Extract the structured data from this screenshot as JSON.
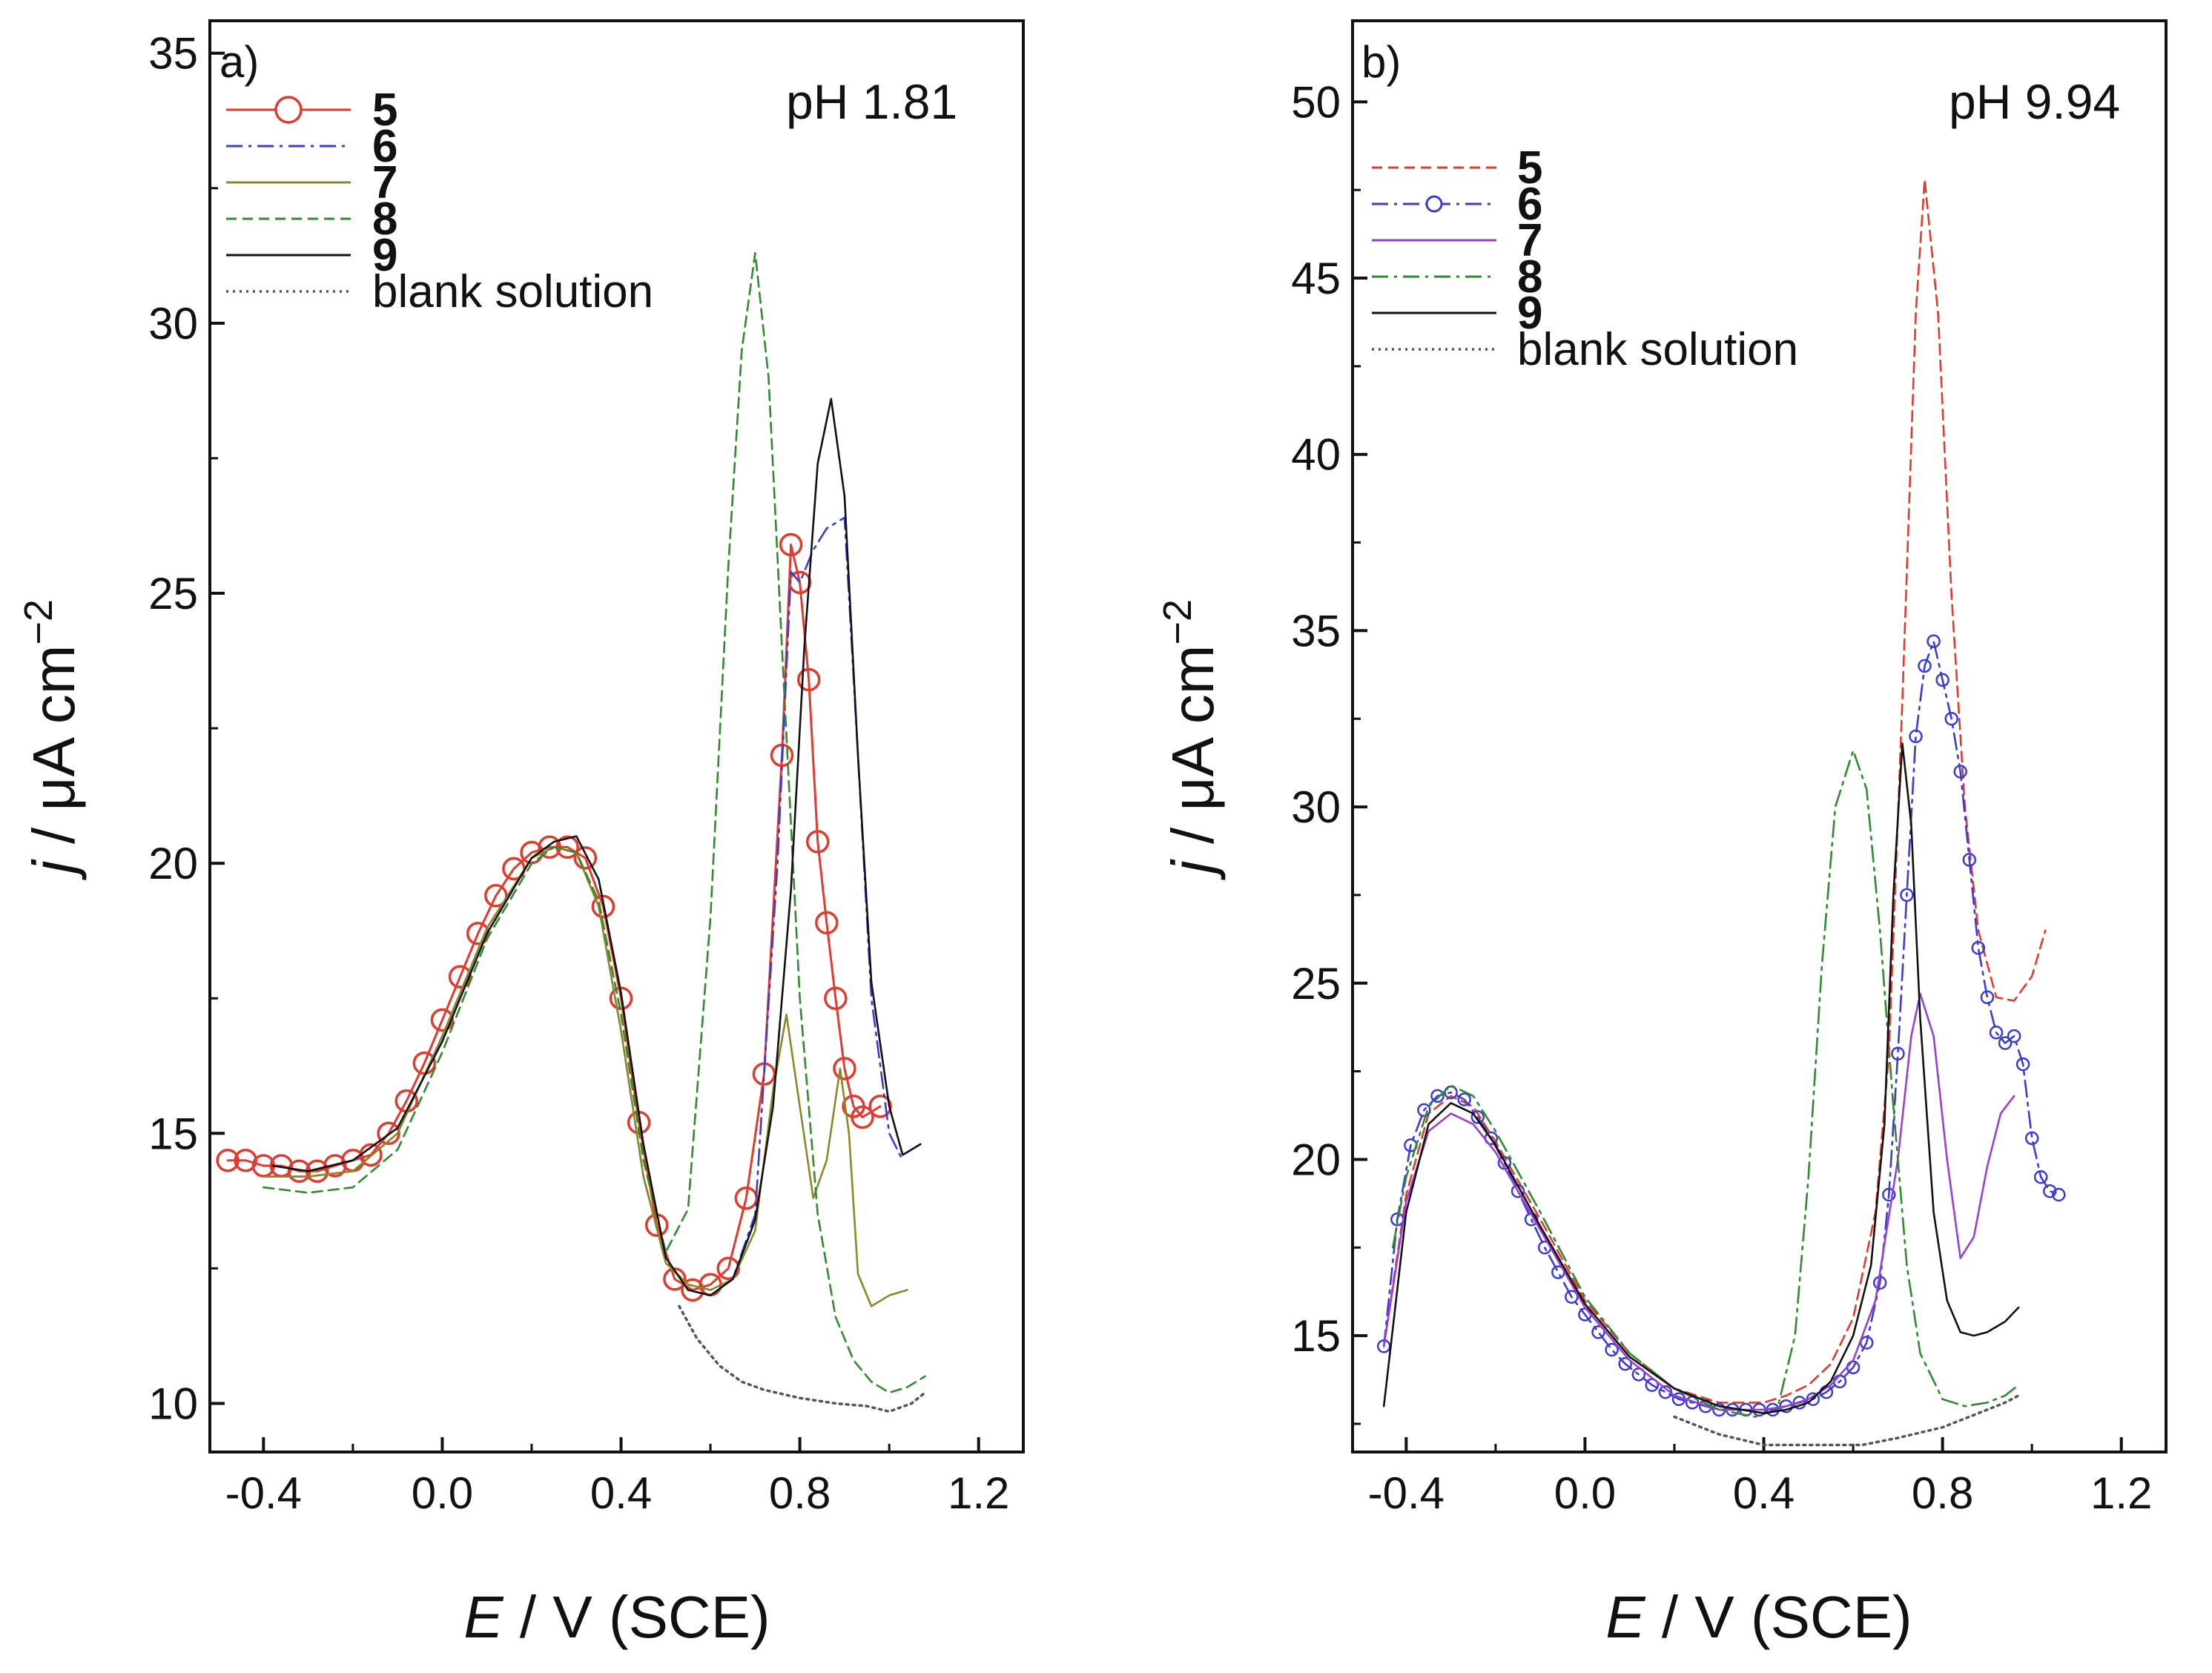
{
  "chart_data": [
    {
      "type": "line",
      "panel_label": "a)",
      "annotation": "pH 1.81",
      "xlabel_italic": "E",
      "xlabel_rest": " / V (SCE)",
      "ylabel_italic": "j",
      "ylabel_rest": " / μA cm",
      "ylabel_sup": "−2",
      "xlim": [
        -0.52,
        1.3
      ],
      "ylim": [
        9.1,
        35.6
      ],
      "xticks": [
        -0.4,
        0.0,
        0.4,
        0.8,
        1.2
      ],
      "xtick_labels": [
        "-0.4",
        "0.0",
        "0.4",
        "0.8",
        "1.2"
      ],
      "yticks": [
        10,
        15,
        20,
        25,
        30,
        35
      ],
      "ytick_labels": [
        "10",
        "15",
        "20",
        "25",
        "30",
        "35"
      ],
      "series": [
        {
          "name": "5",
          "color": "#e23a2e",
          "style": "solid-circle-large",
          "x": [
            -0.48,
            -0.44,
            -0.4,
            -0.36,
            -0.32,
            -0.28,
            -0.24,
            -0.2,
            -0.16,
            -0.12,
            -0.08,
            -0.04,
            0.0,
            0.04,
            0.08,
            0.12,
            0.16,
            0.2,
            0.24,
            0.28,
            0.32,
            0.36,
            0.4,
            0.44,
            0.48,
            0.52,
            0.56,
            0.6,
            0.64,
            0.68,
            0.72,
            0.76,
            0.78,
            0.8,
            0.82,
            0.84,
            0.86,
            0.88,
            0.9,
            0.92,
            0.94,
            0.98
          ],
          "y": [
            14.5,
            14.5,
            14.4,
            14.4,
            14.3,
            14.3,
            14.4,
            14.5,
            14.6,
            15.0,
            15.6,
            16.3,
            17.1,
            17.9,
            18.7,
            19.4,
            19.9,
            20.2,
            20.3,
            20.3,
            20.1,
            19.2,
            17.5,
            15.2,
            13.3,
            12.3,
            12.1,
            12.2,
            12.5,
            13.8,
            16.1,
            22.0,
            25.9,
            25.2,
            23.4,
            20.4,
            18.9,
            17.5,
            16.2,
            15.5,
            15.3,
            15.5
          ]
        },
        {
          "name": "6",
          "color": "#3b3bd6",
          "style": "dashdot",
          "x": [
            -0.4,
            -0.3,
            -0.2,
            -0.1,
            0.0,
            0.1,
            0.2,
            0.25,
            0.3,
            0.35,
            0.4,
            0.45,
            0.5,
            0.55,
            0.6,
            0.65,
            0.7,
            0.75,
            0.78,
            0.8,
            0.83,
            0.86,
            0.9,
            0.93,
            0.96,
            1.0,
            1.03
          ],
          "y": [
            14.2,
            14.2,
            14.3,
            15.0,
            16.8,
            18.8,
            20.1,
            20.3,
            20.2,
            19.2,
            16.9,
            14.2,
            12.6,
            12.2,
            12.1,
            12.3,
            13.5,
            20.0,
            25.4,
            25.2,
            25.8,
            26.2,
            26.4,
            22.0,
            17.5,
            15.0,
            14.5
          ]
        },
        {
          "name": "7",
          "color": "#8c8826",
          "style": "solid",
          "x": [
            -0.4,
            -0.3,
            -0.2,
            -0.1,
            0.0,
            0.1,
            0.2,
            0.25,
            0.3,
            0.35,
            0.4,
            0.45,
            0.5,
            0.55,
            0.6,
            0.65,
            0.7,
            0.74,
            0.77,
            0.8,
            0.83,
            0.86,
            0.89,
            0.91,
            0.93,
            0.96,
            1.0,
            1.04
          ],
          "y": [
            14.2,
            14.2,
            14.3,
            15.0,
            16.8,
            18.8,
            20.1,
            20.3,
            20.2,
            19.2,
            16.9,
            14.2,
            12.6,
            12.2,
            12.1,
            12.3,
            13.2,
            15.8,
            17.2,
            15.5,
            13.8,
            14.5,
            16.2,
            15.0,
            12.4,
            11.8,
            12.0,
            12.1
          ]
        },
        {
          "name": "8",
          "color": "#2e8b2e",
          "style": "dashed",
          "x": [
            -0.4,
            -0.3,
            -0.2,
            -0.1,
            0.0,
            0.1,
            0.2,
            0.25,
            0.3,
            0.35,
            0.4,
            0.45,
            0.5,
            0.55,
            0.6,
            0.64,
            0.67,
            0.7,
            0.73,
            0.76,
            0.8,
            0.84,
            0.88,
            0.92,
            0.96,
            1.0,
            1.04,
            1.08
          ],
          "y": [
            14.0,
            13.9,
            14.0,
            14.7,
            16.5,
            18.6,
            20.0,
            20.3,
            20.2,
            19.3,
            17.2,
            14.5,
            12.8,
            13.6,
            19.0,
            25.5,
            29.5,
            31.3,
            29.0,
            24.0,
            17.5,
            13.5,
            11.6,
            10.8,
            10.4,
            10.2,
            10.3,
            10.5
          ]
        },
        {
          "name": "9",
          "color": "#111111",
          "style": "solid",
          "x": [
            -0.38,
            -0.3,
            -0.2,
            -0.1,
            0.0,
            0.1,
            0.2,
            0.25,
            0.3,
            0.35,
            0.4,
            0.45,
            0.5,
            0.55,
            0.6,
            0.65,
            0.7,
            0.74,
            0.78,
            0.81,
            0.84,
            0.87,
            0.9,
            0.93,
            0.96,
            1.0,
            1.03,
            1.07
          ],
          "y": [
            14.4,
            14.3,
            14.5,
            15.1,
            16.7,
            18.7,
            20.1,
            20.4,
            20.5,
            19.7,
            17.6,
            14.8,
            12.7,
            12.1,
            12.0,
            12.3,
            13.4,
            15.5,
            19.5,
            24.0,
            27.4,
            28.6,
            26.8,
            22.0,
            17.8,
            15.5,
            14.6,
            14.8
          ]
        },
        {
          "name": "blank solution",
          "color": "#555555",
          "style": "dotted",
          "x": [
            0.53,
            0.57,
            0.62,
            0.67,
            0.72,
            0.8,
            0.88,
            0.95,
            1.0,
            1.05,
            1.08
          ],
          "y": [
            11.8,
            11.2,
            10.7,
            10.4,
            10.25,
            10.1,
            10.0,
            9.95,
            9.85,
            10.0,
            10.2
          ]
        }
      ]
    },
    {
      "type": "line",
      "panel_label": "b)",
      "annotation": "pH 9.94",
      "xlabel_italic": "E",
      "xlabel_rest": " / V (SCE)",
      "ylabel_italic": "j",
      "ylabel_rest": " / μA cm",
      "ylabel_sup": "−2",
      "xlim": [
        -0.52,
        1.3
      ],
      "ylim": [
        11.7,
        52.3
      ],
      "xticks": [
        -0.4,
        0.0,
        0.4,
        0.8,
        1.2
      ],
      "xtick_labels": [
        "-0.4",
        "0.0",
        "0.4",
        "0.8",
        "1.2"
      ],
      "yticks": [
        15,
        20,
        25,
        30,
        35,
        40,
        45,
        50
      ],
      "ytick_labels": [
        "15",
        "20",
        "25",
        "30",
        "35",
        "40",
        "45",
        "50"
      ],
      "series": [
        {
          "name": "5",
          "color": "#e23a2e",
          "style": "dashed",
          "x": [
            -0.45,
            -0.4,
            -0.35,
            -0.3,
            -0.25,
            -0.2,
            -0.1,
            0.0,
            0.1,
            0.2,
            0.3,
            0.4,
            0.45,
            0.5,
            0.55,
            0.6,
            0.65,
            0.68,
            0.71,
            0.74,
            0.76,
            0.79,
            0.82,
            0.85,
            0.88,
            0.92,
            0.96,
            1.0,
            1.03
          ],
          "y": [
            14.7,
            19.0,
            21.3,
            21.8,
            21.5,
            20.5,
            18.3,
            16.0,
            14.5,
            13.5,
            13.1,
            13.1,
            13.3,
            13.6,
            14.2,
            15.5,
            18.5,
            23.0,
            33.0,
            44.0,
            47.8,
            44.0,
            36.0,
            30.0,
            26.5,
            24.6,
            24.5,
            25.2,
            26.5
          ]
        },
        {
          "name": "6",
          "color": "#3b3bd6",
          "style": "dashdot-circle-small",
          "x": [
            -0.45,
            -0.42,
            -0.39,
            -0.36,
            -0.33,
            -0.3,
            -0.27,
            -0.24,
            -0.21,
            -0.18,
            -0.15,
            -0.12,
            -0.09,
            -0.06,
            -0.03,
            0.0,
            0.03,
            0.06,
            0.09,
            0.12,
            0.15,
            0.18,
            0.21,
            0.24,
            0.27,
            0.3,
            0.33,
            0.36,
            0.39,
            0.42,
            0.45,
            0.48,
            0.51,
            0.54,
            0.57,
            0.6,
            0.63,
            0.66,
            0.68,
            0.7,
            0.72,
            0.74,
            0.76,
            0.78,
            0.8,
            0.82,
            0.84,
            0.86,
            0.88,
            0.9,
            0.92,
            0.94,
            0.96,
            0.98,
            1.0,
            1.02,
            1.04,
            1.06
          ],
          "y": [
            14.7,
            18.3,
            20.4,
            21.4,
            21.8,
            21.9,
            21.7,
            21.2,
            20.6,
            19.9,
            19.1,
            18.3,
            17.5,
            16.8,
            16.1,
            15.6,
            15.1,
            14.6,
            14.2,
            13.9,
            13.6,
            13.4,
            13.2,
            13.1,
            13.0,
            12.9,
            12.9,
            12.9,
            12.9,
            12.9,
            13.0,
            13.1,
            13.2,
            13.4,
            13.7,
            14.1,
            14.8,
            16.5,
            19.0,
            23.0,
            27.5,
            32.0,
            34.0,
            34.7,
            33.6,
            32.5,
            31.0,
            28.5,
            26.0,
            24.6,
            23.6,
            23.3,
            23.5,
            22.7,
            20.6,
            19.5,
            19.1,
            19.0
          ]
        },
        {
          "name": "7",
          "color": "#9a3fd4",
          "style": "solid",
          "x": [
            -0.45,
            -0.4,
            -0.35,
            -0.3,
            -0.25,
            -0.2,
            -0.1,
            0.0,
            0.1,
            0.2,
            0.3,
            0.4,
            0.45,
            0.5,
            0.55,
            0.6,
            0.65,
            0.7,
            0.73,
            0.75,
            0.78,
            0.81,
            0.84,
            0.87,
            0.9,
            0.93,
            0.96
          ],
          "y": [
            14.7,
            18.8,
            20.8,
            21.3,
            21.0,
            20.2,
            18.0,
            15.8,
            14.3,
            13.3,
            12.9,
            12.9,
            13.0,
            13.2,
            13.6,
            14.3,
            16.0,
            20.0,
            23.5,
            24.7,
            23.5,
            20.0,
            17.2,
            17.8,
            19.8,
            21.3,
            21.8
          ]
        },
        {
          "name": "8",
          "color": "#2e8b2e",
          "style": "dashdot",
          "x": [
            -0.43,
            -0.4,
            -0.35,
            -0.3,
            -0.25,
            -0.2,
            -0.1,
            0.0,
            0.1,
            0.2,
            0.3,
            0.38,
            0.43,
            0.47,
            0.5,
            0.53,
            0.56,
            0.6,
            0.63,
            0.66,
            0.69,
            0.72,
            0.75,
            0.8,
            0.85,
            0.9,
            0.94,
            0.97
          ],
          "y": [
            17.5,
            19.5,
            21.5,
            22.1,
            21.8,
            20.8,
            18.5,
            16.1,
            14.5,
            13.5,
            12.9,
            12.7,
            12.9,
            15.0,
            19.5,
            25.5,
            30.0,
            31.6,
            30.5,
            26.5,
            21.5,
            17.0,
            14.5,
            13.2,
            13.0,
            13.1,
            13.3,
            13.6
          ]
        },
        {
          "name": "9",
          "color": "#111111",
          "style": "solid",
          "x": [
            -0.45,
            -0.4,
            -0.35,
            -0.3,
            -0.25,
            -0.2,
            -0.1,
            0.0,
            0.1,
            0.2,
            0.3,
            0.4,
            0.45,
            0.5,
            0.55,
            0.6,
            0.64,
            0.67,
            0.69,
            0.71,
            0.73,
            0.75,
            0.78,
            0.81,
            0.84,
            0.87,
            0.9,
            0.94,
            0.97
          ],
          "y": [
            13.0,
            18.5,
            21.0,
            21.6,
            21.3,
            20.4,
            18.1,
            15.9,
            14.4,
            13.5,
            13.0,
            12.8,
            12.9,
            13.1,
            13.7,
            15.0,
            17.0,
            21.0,
            27.5,
            31.8,
            29.5,
            24.0,
            18.5,
            16.0,
            15.1,
            15.0,
            15.1,
            15.4,
            15.8
          ]
        },
        {
          "name": "blank solution",
          "color": "#555555",
          "style": "dotted",
          "x": [
            0.2,
            0.3,
            0.4,
            0.48,
            0.55,
            0.62,
            0.7,
            0.8,
            0.88,
            0.94,
            0.97
          ],
          "y": [
            12.7,
            12.2,
            11.9,
            11.9,
            11.9,
            11.9,
            12.1,
            12.4,
            12.8,
            13.1,
            13.3
          ]
        }
      ]
    }
  ]
}
